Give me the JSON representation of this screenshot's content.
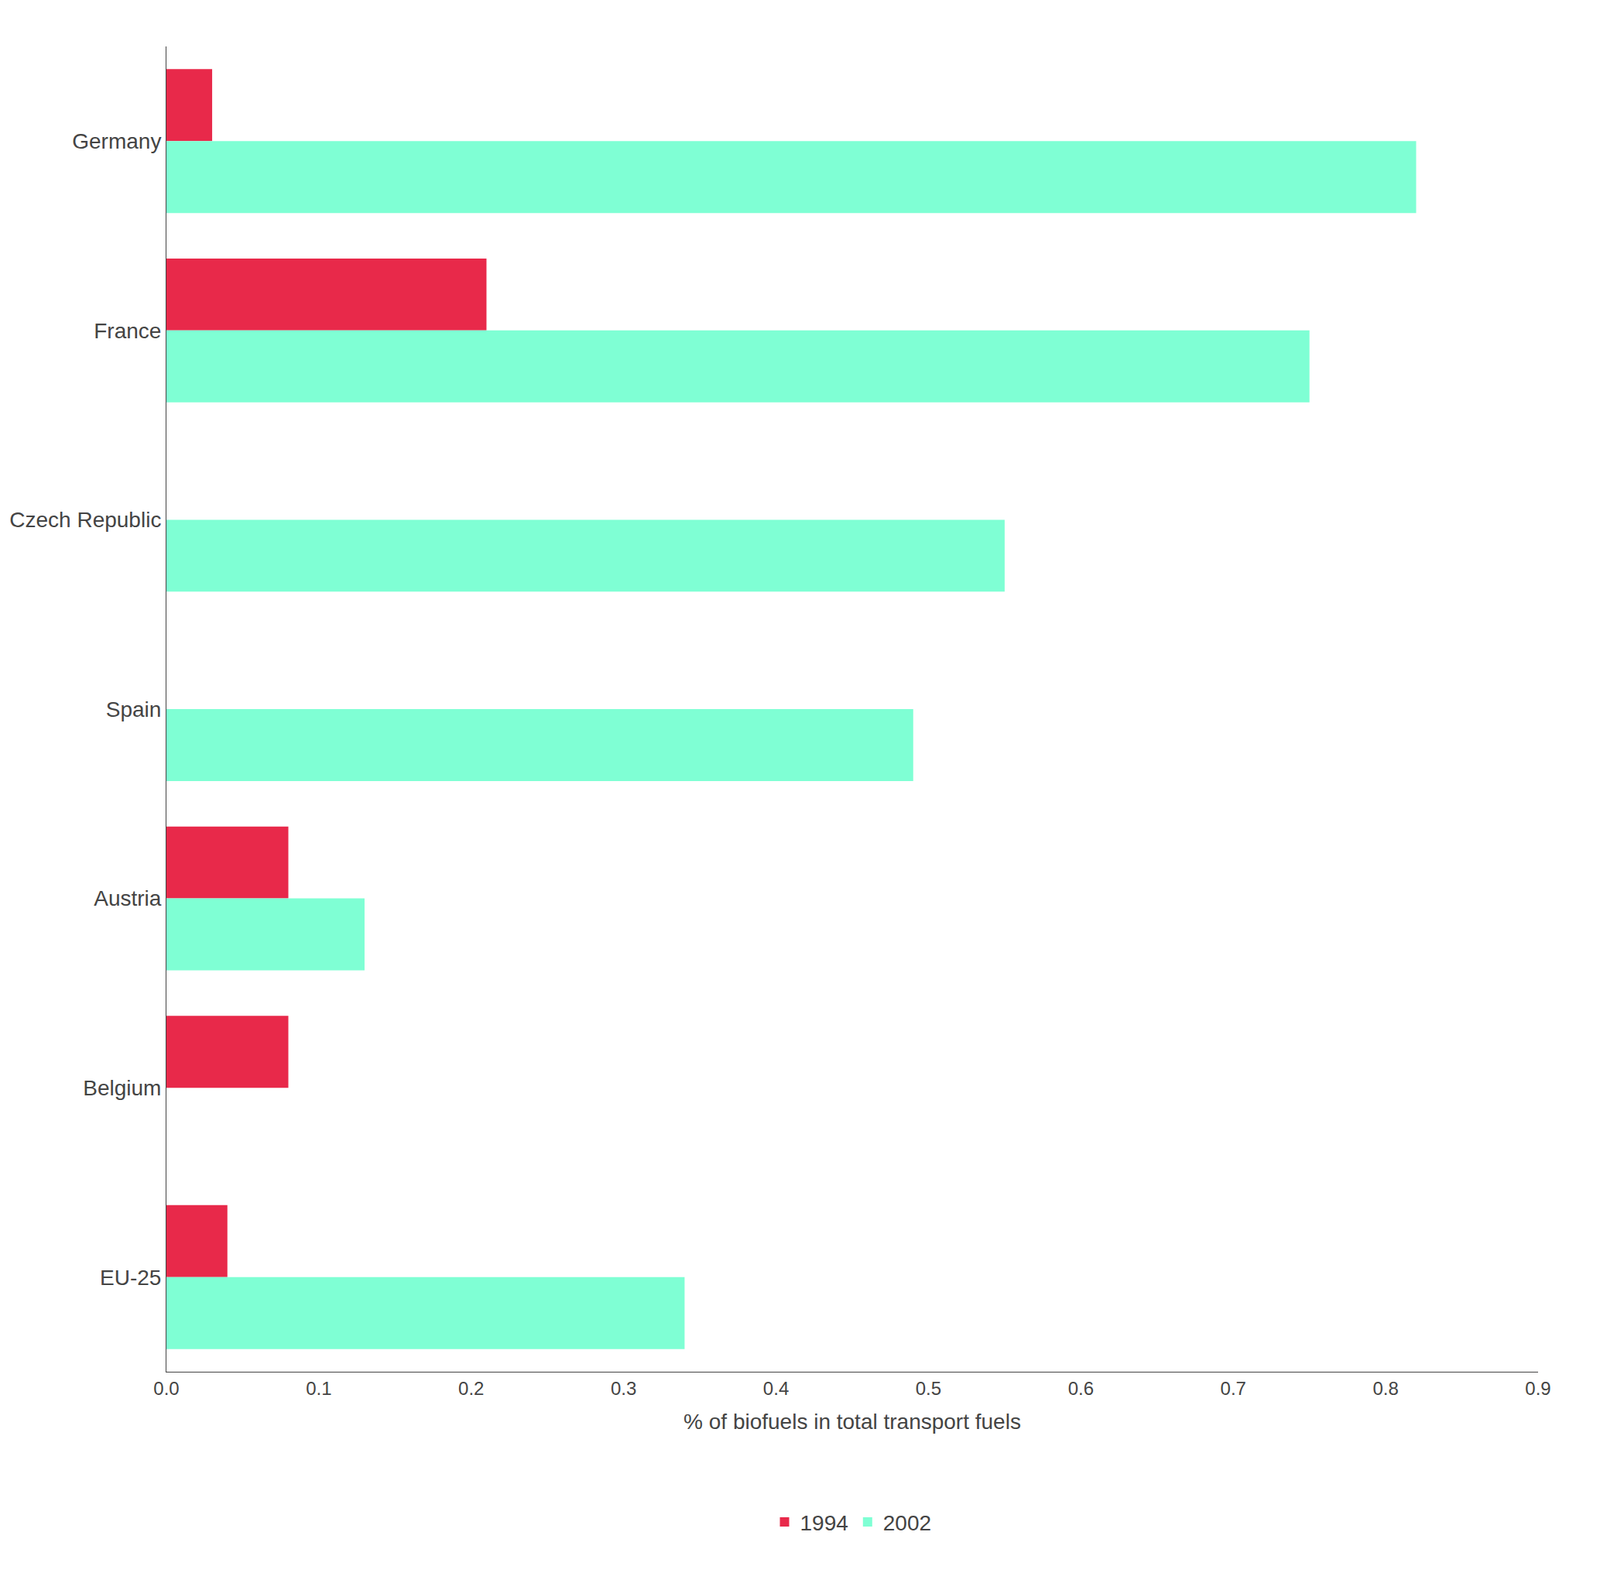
{
  "chart_data": {
    "type": "bar",
    "orientation": "horizontal",
    "categories": [
      "Germany",
      "France",
      "Czech Republic",
      "Spain",
      "Austria",
      "Belgium",
      "EU-25"
    ],
    "series": [
      {
        "name": "1994",
        "color": "#e8294a",
        "values": [
          0.03,
          0.21,
          0.0,
          0.0,
          0.08,
          0.08,
          0.04
        ]
      },
      {
        "name": "2002",
        "color": "#7fffd4",
        "values": [
          0.82,
          0.75,
          0.55,
          0.49,
          0.13,
          0.0,
          0.34
        ]
      }
    ],
    "xlabel": "% of biofuels in total transport fuels",
    "xlim": [
      0,
      0.9
    ],
    "xticks": [
      {
        "value": 0,
        "label": "0.0"
      },
      0.1,
      0.2,
      0.3,
      0.4,
      0.5,
      0.6,
      0.7,
      0.8,
      0.9
    ],
    "grid": false,
    "legend": "bottom"
  }
}
